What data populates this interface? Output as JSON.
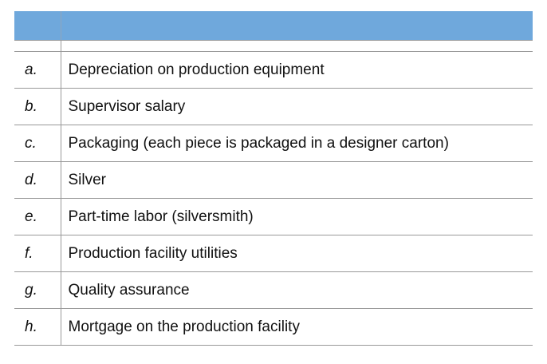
{
  "table": {
    "header": {
      "letter_col": "",
      "description_col": ""
    },
    "rows": [
      {
        "label": "a.",
        "text": "Depreciation on production equipment"
      },
      {
        "label": "b.",
        "text": "Supervisor salary"
      },
      {
        "label": "c.",
        "text": "Packaging (each piece is packaged in a designer carton)"
      },
      {
        "label": "d.",
        "text": "Silver"
      },
      {
        "label": "e.",
        "text": "Part-time labor (silversmith)"
      },
      {
        "label": "f.",
        "text": "Production facility utilities"
      },
      {
        "label": "g.",
        "text": "Quality assurance"
      },
      {
        "label": "h.",
        "text": "Mortgage on the production facility"
      }
    ],
    "colors": {
      "header_bg": "#6fa8dc",
      "row_border": "#999999",
      "text": "#111111"
    }
  }
}
